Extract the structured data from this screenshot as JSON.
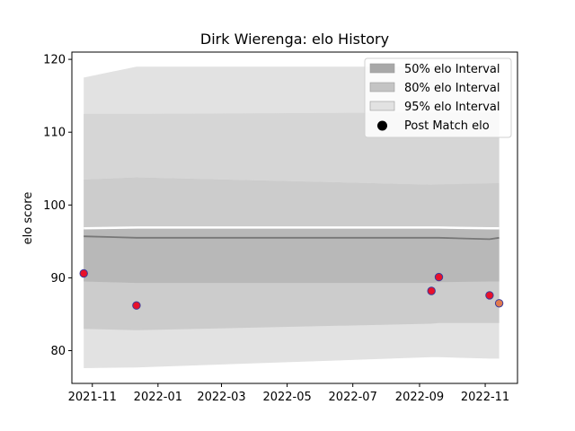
{
  "chart_data": {
    "type": "area",
    "title": "Dirk Wierenga: elo History",
    "xlabel": "",
    "ylabel": "elo score",
    "x_ticks": [
      "2021-11",
      "2022-01",
      "2022-03",
      "2022-05",
      "2022-07",
      "2022-09",
      "2022-11"
    ],
    "y_ticks": [
      80,
      90,
      100,
      110,
      120
    ],
    "xlim": [
      "2021-10-13",
      "2022-12-01"
    ],
    "ylim": [
      75.5,
      121.0
    ],
    "legend_position": "top-right",
    "legend": [
      {
        "label": "50% elo Interval",
        "kind": "patch",
        "color": "#a8a8a8"
      },
      {
        "label": "80% elo Interval",
        "kind": "patch",
        "color": "#c4c4c4"
      },
      {
        "label": "95% elo Interval",
        "kind": "patch",
        "color": "#e2e2e2"
      },
      {
        "label": "Post Match elo",
        "kind": "marker",
        "color": "#000000"
      }
    ],
    "x": [
      "2021-10-24",
      "2021-12-12",
      "2022-09-12",
      "2022-09-19",
      "2022-11-05",
      "2022-11-14"
    ],
    "mean": [
      95.7,
      95.5,
      95.5,
      95.5,
      95.3,
      95.5
    ],
    "band_50": {
      "lower": [
        89.5,
        89.3,
        89.3,
        89.4,
        89.5,
        89.5
      ],
      "upper": [
        96.8,
        96.9,
        96.9,
        96.9,
        96.8,
        96.8
      ]
    },
    "band_80": {
      "lower": [
        83.0,
        82.8,
        83.7,
        83.8,
        83.8,
        83.8
      ],
      "upper": [
        103.5,
        103.8,
        102.8,
        102.9,
        103.0,
        103.0
      ]
    },
    "band_95": {
      "lower": [
        77.6,
        77.7,
        79.1,
        79.1,
        78.9,
        78.9
      ],
      "upper": [
        117.5,
        119.0,
        119.0,
        119.0,
        119.0,
        119.0
      ]
    },
    "band_95_mid_upper": {
      "x": [
        "2021-10-24",
        "2021-12-12",
        "2022-09-12",
        "2022-11-14"
      ],
      "values": [
        112.5,
        112.5,
        112.7,
        112.7
      ]
    },
    "post_match_elo": [
      {
        "x": "2021-10-24",
        "y": 90.6,
        "color": "#e8102a"
      },
      {
        "x": "2021-12-12",
        "y": 86.2,
        "color": "#e8102a"
      },
      {
        "x": "2022-09-12",
        "y": 88.2,
        "color": "#e8102a"
      },
      {
        "x": "2022-09-19",
        "y": 90.1,
        "color": "#e8102a"
      },
      {
        "x": "2022-11-05",
        "y": 87.6,
        "color": "#e8102a"
      },
      {
        "x": "2022-11-14",
        "y": 86.5,
        "color": "#e07a4e"
      }
    ]
  }
}
